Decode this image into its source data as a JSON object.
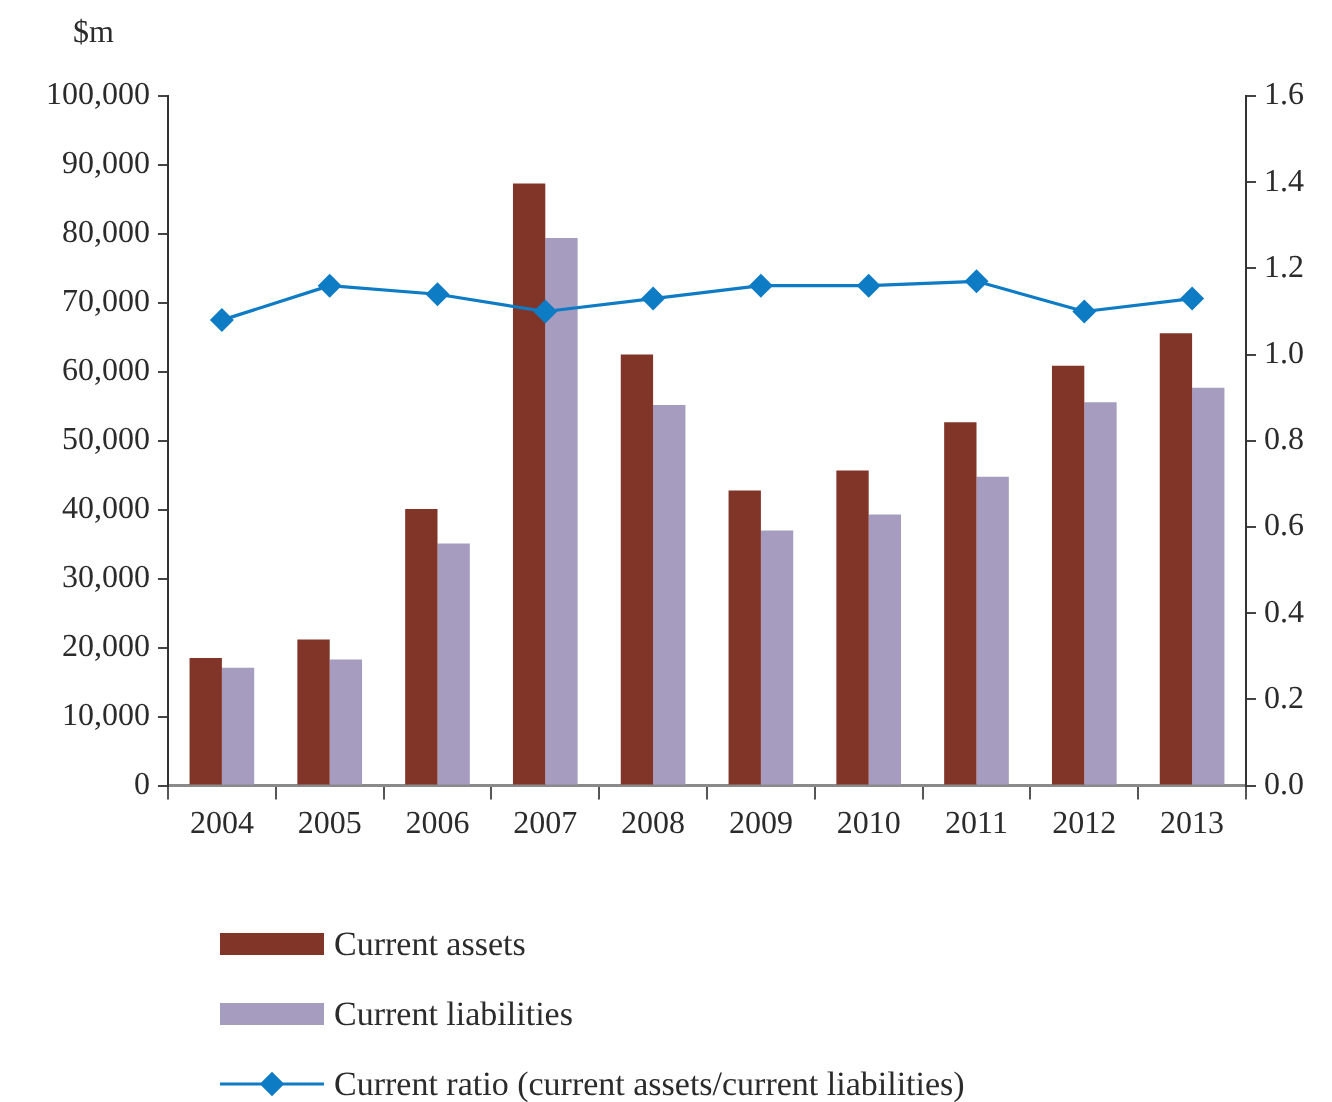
{
  "chart_data": {
    "type": "bar",
    "ylabel": "$m",
    "categories": [
      "2004",
      "2005",
      "2006",
      "2007",
      "2008",
      "2009",
      "2010",
      "2011",
      "2012",
      "2013"
    ],
    "series": [
      {
        "name": "Current assets",
        "color": "#813528",
        "values": [
          18500,
          21200,
          40100,
          87300,
          62500,
          42800,
          45700,
          52700,
          60900,
          65600
        ]
      },
      {
        "name": "Current liabilities",
        "color": "#a59cc0",
        "values": [
          17100,
          18300,
          35100,
          79400,
          55200,
          37000,
          39300,
          44800,
          55600,
          57700
        ]
      },
      {
        "name": "Current ratio (current assets/current liabilities)",
        "type": "line",
        "axis": "y2",
        "color": "#0e7bc5",
        "values": [
          1.08,
          1.16,
          1.14,
          1.1,
          1.13,
          1.16,
          1.16,
          1.17,
          1.1,
          1.13
        ]
      }
    ],
    "ylim": [
      0,
      100000
    ],
    "yticks": [
      {
        "value": 0,
        "label": "0"
      },
      {
        "value": 10000,
        "label": "10,000"
      },
      {
        "value": 20000,
        "label": "20,000"
      },
      {
        "value": 30000,
        "label": "30,000"
      },
      {
        "value": 40000,
        "label": "40,000"
      },
      {
        "value": 50000,
        "label": "50,000"
      },
      {
        "value": 60000,
        "label": "60,000"
      },
      {
        "value": 70000,
        "label": "70,000"
      },
      {
        "value": 80000,
        "label": "80,000"
      },
      {
        "value": 90000,
        "label": "90,000"
      },
      {
        "value": 100000,
        "label": "100,000"
      }
    ],
    "y2lim": [
      0,
      1.6
    ],
    "y2ticks": [
      {
        "value": 0,
        "label": "0.0"
      },
      {
        "value": 0.2,
        "label": "0.2"
      },
      {
        "value": 0.4,
        "label": "0.4"
      },
      {
        "value": 0.6,
        "label": "0.6"
      },
      {
        "value": 0.8,
        "label": "0.8"
      },
      {
        "value": 1.0,
        "label": "1.0"
      },
      {
        "value": 1.2,
        "label": "1.2"
      },
      {
        "value": 1.4,
        "label": "1.4"
      },
      {
        "value": 1.6,
        "label": "1.6"
      }
    ],
    "grid": false,
    "legend": "bottom",
    "marker": "diamond",
    "line_style": "solid"
  }
}
